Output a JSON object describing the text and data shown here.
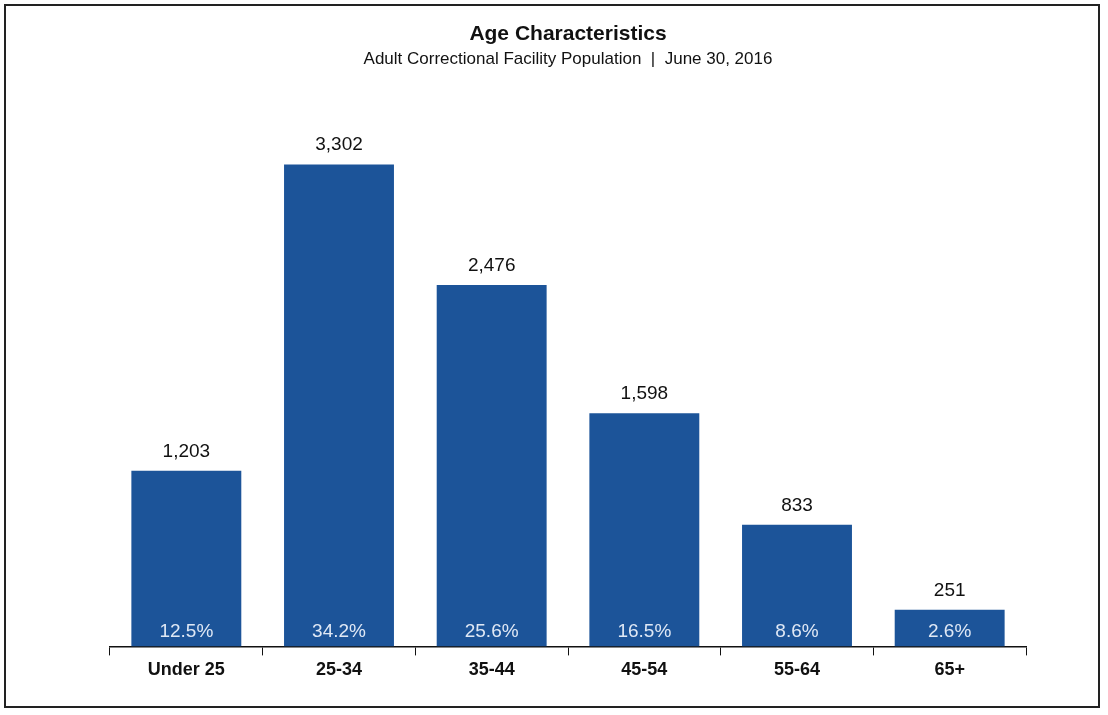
{
  "chart_data": {
    "type": "bar",
    "title": "Age Characteristics",
    "subtitle": "Adult Correctional Facility Population  |  June 30, 2016",
    "categories": [
      "Under 25",
      "25-34",
      "35-44",
      "45-54",
      "55-64",
      "65+"
    ],
    "values": [
      1203,
      3302,
      2476,
      1598,
      833,
      251
    ],
    "color": "#1c5499",
    "value_labels": [
      "1,203",
      "3,302",
      "2,476",
      "1,598",
      "833",
      "251"
    ],
    "tick_labels": "x",
    "grid": false,
    "legend": false,
    "annotations": [
      {
        "text": "12.5%",
        "x": "Under 25",
        "y": 0
      },
      {
        "text": "34.2%",
        "x": "25-34",
        "y": 0
      },
      {
        "text": "25.6%",
        "x": "35-44",
        "y": 0
      },
      {
        "text": "16.5%",
        "x": "45-54",
        "y": 0
      },
      {
        "text": "8.6%",
        "x": "55-64",
        "y": 0
      },
      {
        "text": "2.6%",
        "x": "65+",
        "y": 0
      }
    ]
  }
}
